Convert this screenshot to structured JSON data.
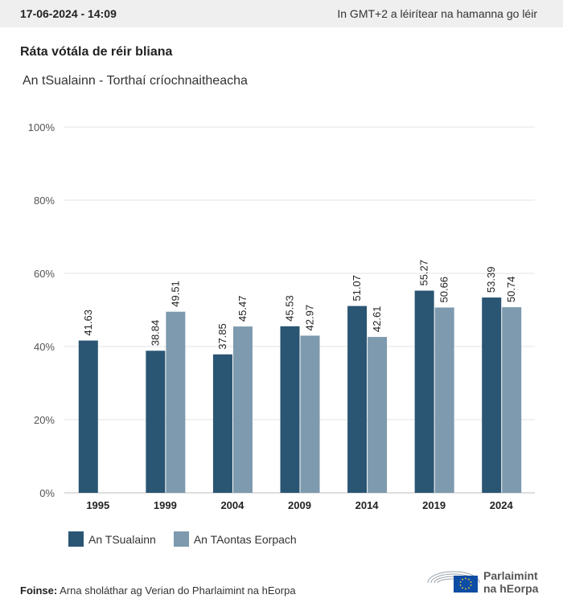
{
  "header": {
    "datetime": "17-06-2024 - 14:09",
    "timezone_note": "In GMT+2 a léirítear na hamanna go léir"
  },
  "title": "Ráta vótála de réir bliana",
  "subtitle": "An tSualainn - Torthaí críochnaitheacha",
  "colors": {
    "national": "#2a5573",
    "eu": "#7d9aae",
    "grid": "#e3e3e3",
    "axis_text": "#555555"
  },
  "chart_data": {
    "type": "bar",
    "title": "Ráta vótála de réir bliana",
    "subtitle": "An tSualainn - Torthaí críochnaitheacha",
    "categories": [
      "1995",
      "1999",
      "2004",
      "2009",
      "2014",
      "2019",
      "2024"
    ],
    "series": [
      {
        "name": "An TSualainn",
        "values": [
          41.63,
          38.84,
          37.85,
          45.53,
          51.07,
          55.27,
          53.39
        ]
      },
      {
        "name": "An TAontas Eorpach",
        "values": [
          null,
          49.51,
          45.47,
          42.97,
          42.61,
          50.66,
          50.74
        ]
      }
    ],
    "ylim": [
      0,
      100
    ],
    "yticks": [
      "0%",
      "20%",
      "40%",
      "60%",
      "80%",
      "100%"
    ],
    "ytick_values": [
      0,
      20,
      40,
      60,
      80,
      100
    ],
    "grid": true,
    "legend_position": "bottom-left",
    "data_labels": true
  },
  "legend": {
    "items": [
      {
        "label": "An TSualainn"
      },
      {
        "label": "An TAontas Eorpach"
      }
    ]
  },
  "source": {
    "label": "Foinse:",
    "text": "Arna sholáthar ag Verian do Pharlaimint na hEorpa"
  },
  "logo": {
    "line1": "Parlaimint",
    "line2": "na hEorpa",
    "icon": "european-parliament-logo"
  }
}
